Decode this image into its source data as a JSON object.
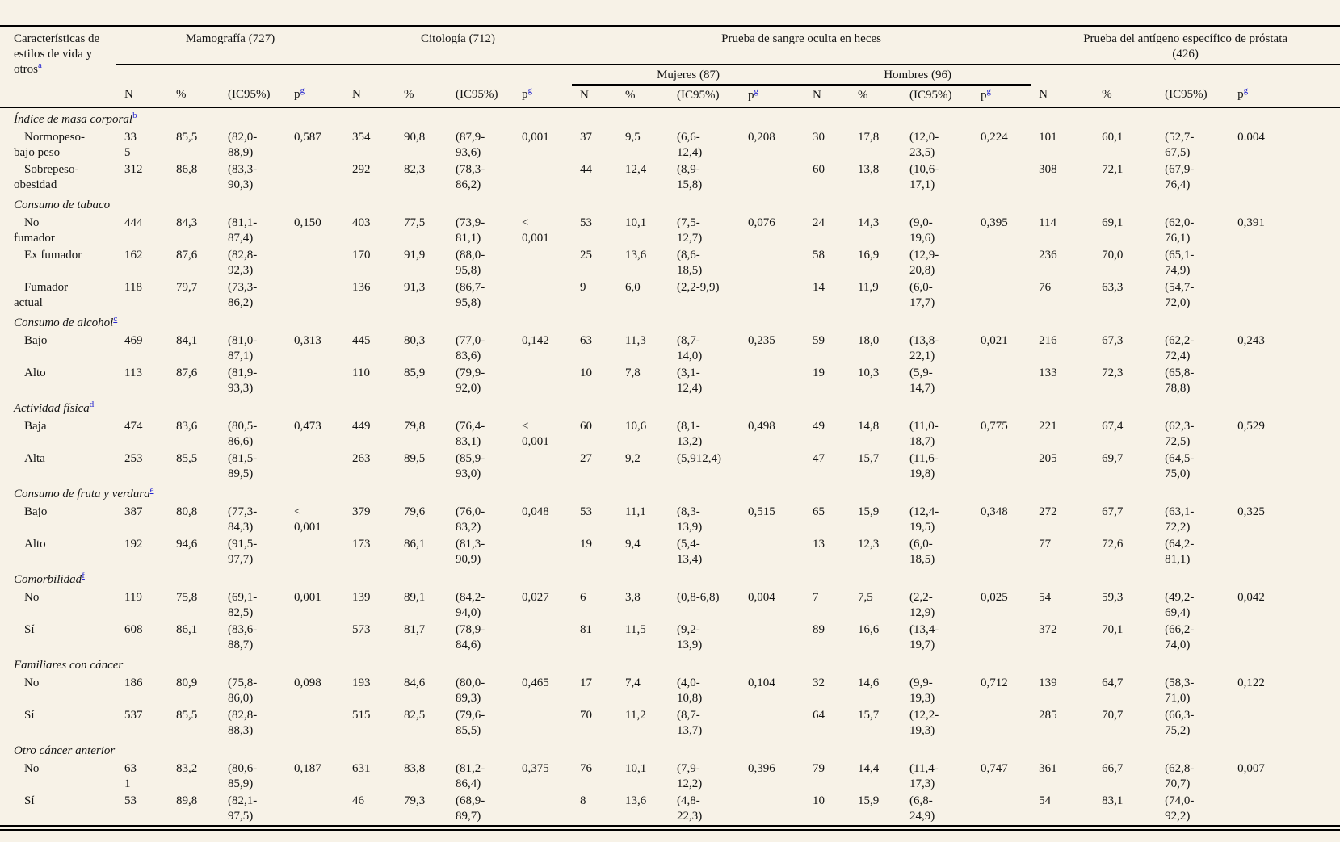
{
  "colors": {
    "background": "#f7f2e7",
    "text": "#141414",
    "rule": "#000000",
    "link": "#2424cf"
  },
  "table": {
    "stub_header": {
      "text": "Características de\nestilos de vida y\notros",
      "sup": "a"
    },
    "groups": [
      {
        "label": "Mamografía (727)"
      },
      {
        "label": "Citología (712)"
      },
      {
        "label": "Prueba de sangre oculta en heces",
        "subgroups": [
          "Mujeres (87)",
          "Hombres (96)"
        ]
      },
      {
        "label": "Prueba del antígeno específico de próstata\n(426)"
      }
    ],
    "col_headers": {
      "n": "N",
      "pct": "%",
      "ci": "(IC95%)",
      "p": "p",
      "p_sup": "g"
    },
    "sections": [
      {
        "label": "Índice de masa corporal",
        "sup": "b",
        "rows": [
          {
            "label": "Normopeso-\nbajo peso",
            "values": [
              "33\n5",
              "85,5",
              "(82,0-\n88,9)",
              "0,587",
              "354",
              "90,8",
              "(87,9-\n93,6)",
              "0,001",
              "37",
              "9,5",
              "(6,6-\n12,4)",
              "0,208",
              "30",
              "17,8",
              "(12,0-\n23,5)",
              "0,224",
              "101",
              "60,1",
              "(52,7-\n67,5)",
              "0.004"
            ]
          },
          {
            "label": "Sobrepeso-\nobesidad",
            "values": [
              "312",
              "86,8",
              "(83,3-\n90,3)",
              "",
              "292",
              "82,3",
              "(78,3-\n86,2)",
              "",
              "44",
              "12,4",
              "(8,9-\n15,8)",
              "",
              "60",
              "13,8",
              "(10,6-\n17,1)",
              "",
              "308",
              "72,1",
              "(67,9-\n76,4)",
              ""
            ]
          }
        ]
      },
      {
        "label": "Consumo de tabaco",
        "sup": null,
        "rows": [
          {
            "label": "No\nfumador",
            "values": [
              "444",
              "84,3",
              "(81,1-\n87,4)",
              "0,150",
              "403",
              "77,5",
              "(73,9-\n81,1)",
              "<\n0,001",
              "53",
              "10,1",
              "(7,5-\n12,7)",
              "0,076",
              "24",
              "14,3",
              "(9,0-\n19,6)",
              "0,395",
              "114",
              "69,1",
              "(62,0-\n76,1)",
              "0,391"
            ]
          },
          {
            "label": "Ex fumador",
            "values": [
              "162",
              "87,6",
              "(82,8-\n92,3)",
              "",
              "170",
              "91,9",
              "(88,0-\n95,8)",
              "",
              "25",
              "13,6",
              "(8,6-\n18,5)",
              "",
              "58",
              "16,9",
              "(12,9-\n20,8)",
              "",
              "236",
              "70,0",
              "(65,1-\n74,9)",
              ""
            ]
          },
          {
            "label": "Fumador\nactual",
            "values": [
              "118",
              "79,7",
              "(73,3-\n86,2)",
              "",
              "136",
              "91,3",
              "(86,7-\n95,8)",
              "",
              "9",
              "6,0",
              "(2,2-9,9)",
              "",
              "14",
              "11,9",
              "(6,0-\n17,7)",
              "",
              "76",
              "63,3",
              "(54,7-\n72,0)",
              ""
            ]
          }
        ]
      },
      {
        "label": "Consumo de alcohol",
        "sup": "c",
        "rows": [
          {
            "label": "Bajo",
            "values": [
              "469",
              "84,1",
              "(81,0-\n87,1)",
              "0,313",
              "445",
              "80,3",
              "(77,0-\n83,6)",
              "0,142",
              "63",
              "11,3",
              "(8,7-\n14,0)",
              "0,235",
              "59",
              "18,0",
              "(13,8-\n22,1)",
              "0,021",
              "216",
              "67,3",
              "(62,2-\n72,4)",
              "0,243"
            ]
          },
          {
            "label": "Alto",
            "values": [
              "113",
              "87,6",
              "(81,9-\n93,3)",
              "",
              "110",
              "85,9",
              "(79,9-\n92,0)",
              "",
              "10",
              "7,8",
              "(3,1-\n12,4)",
              "",
              "19",
              "10,3",
              "(5,9-\n14,7)",
              "",
              "133",
              "72,3",
              "(65,8-\n78,8)",
              ""
            ]
          }
        ]
      },
      {
        "label": "Actividad física",
        "sup": "d",
        "rows": [
          {
            "label": "Baja",
            "values": [
              "474",
              "83,6",
              "(80,5-\n86,6)",
              "0,473",
              "449",
              "79,8",
              "(76,4-\n83,1)",
              "<\n0,001",
              "60",
              "10,6",
              "(8,1-\n13,2)",
              "0,498",
              "49",
              "14,8",
              "(11,0-\n18,7)",
              "0,775",
              "221",
              "67,4",
              "(62,3-\n72,5)",
              "0,529"
            ]
          },
          {
            "label": "Alta",
            "values": [
              "253",
              "85,5",
              "(81,5-\n89,5)",
              "",
              "263",
              "89,5",
              "(85,9-\n93,0)",
              "",
              "27",
              "9,2",
              "(5,912,4)",
              "",
              "47",
              "15,7",
              "(11,6-\n19,8)",
              "",
              "205",
              "69,7",
              "(64,5-\n75,0)",
              ""
            ]
          }
        ]
      },
      {
        "label": "Consumo de fruta y verdura",
        "sup": "e",
        "rows": [
          {
            "label": "Bajo",
            "values": [
              "387",
              "80,8",
              "(77,3-\n84,3)",
              "<\n0,001",
              "379",
              "79,6",
              "(76,0-\n83,2)",
              "0,048",
              "53",
              "11,1",
              "(8,3-\n13,9)",
              "0,515",
              "65",
              "15,9",
              "(12,4-\n19,5)",
              "0,348",
              "272",
              "67,7",
              "(63,1-\n72,2)",
              "0,325"
            ]
          },
          {
            "label": "Alto",
            "values": [
              "192",
              "94,6",
              "(91,5-\n97,7)",
              "",
              "173",
              "86,1",
              "(81,3-\n90,9)",
              "",
              "19",
              "9,4",
              "(5,4-\n13,4)",
              "",
              "13",
              "12,3",
              "(6,0-\n18,5)",
              "",
              "77",
              "72,6",
              "(64,2-\n81,1)",
              ""
            ]
          }
        ]
      },
      {
        "label": "Comorbilidad",
        "sup": "f",
        "rows": [
          {
            "label": "No",
            "values": [
              "119",
              "75,8",
              "(69,1-\n82,5)",
              "0,001",
              "139",
              "89,1",
              "(84,2-\n94,0)",
              "0,027",
              "6",
              "3,8",
              "(0,8-6,8)",
              "0,004",
              "7",
              "7,5",
              "(2,2-\n12,9)",
              "0,025",
              "54",
              "59,3",
              "(49,2-\n69,4)",
              "0,042"
            ]
          },
          {
            "label": "Sí",
            "values": [
              "608",
              "86,1",
              "(83,6-\n88,7)",
              "",
              "573",
              "81,7",
              "(78,9-\n84,6)",
              "",
              "81",
              "11,5",
              "(9,2-\n13,9)",
              "",
              "89",
              "16,6",
              "(13,4-\n19,7)",
              "",
              "372",
              "70,1",
              "(66,2-\n74,0)",
              ""
            ]
          }
        ]
      },
      {
        "label": "Familiares con cáncer",
        "sup": null,
        "rows": [
          {
            "label": "No",
            "values": [
              "186",
              "80,9",
              "(75,8-\n86,0)",
              "0,098",
              "193",
              "84,6",
              "(80,0-\n89,3)",
              "0,465",
              "17",
              "7,4",
              "(4,0-\n10,8)",
              "0,104",
              "32",
              "14,6",
              "(9,9-\n19,3)",
              "0,712",
              "139",
              "64,7",
              "(58,3-\n71,0)",
              "0,122"
            ]
          },
          {
            "label": "Sí",
            "values": [
              "537",
              "85,5",
              "(82,8-\n88,3)",
              "",
              "515",
              "82,5",
              "(79,6-\n85,5)",
              "",
              "70",
              "11,2",
              "(8,7-\n13,7)",
              "",
              "64",
              "15,7",
              "(12,2-\n19,3)",
              "",
              "285",
              "70,7",
              "(66,3-\n75,2)",
              ""
            ]
          }
        ]
      },
      {
        "label": "Otro cáncer anterior",
        "sup": null,
        "rows": [
          {
            "label": "No",
            "values": [
              "63\n1",
              "83,2",
              "(80,6-\n85,9)",
              "0,187",
              "631",
              "83,8",
              "(81,2-\n86,4)",
              "0,375",
              "76",
              "10,1",
              "(7,9-\n12,2)",
              "0,396",
              "79",
              "14,4",
              "(11,4-\n17,3)",
              "0,747",
              "361",
              "66,7",
              "(62,8-\n70,7)",
              "0,007"
            ]
          },
          {
            "label": "Sí",
            "values": [
              "53",
              "89,8",
              "(82,1-\n97,5)",
              "",
              "46",
              "79,3",
              "(68,9-\n89,7)",
              "",
              "8",
              "13,6",
              "(4,8-\n22,3)",
              "",
              "10",
              "15,9",
              "(6,8-\n24,9)",
              "",
              "54",
              "83,1",
              "(74,0-\n92,2)",
              ""
            ]
          }
        ]
      }
    ]
  }
}
